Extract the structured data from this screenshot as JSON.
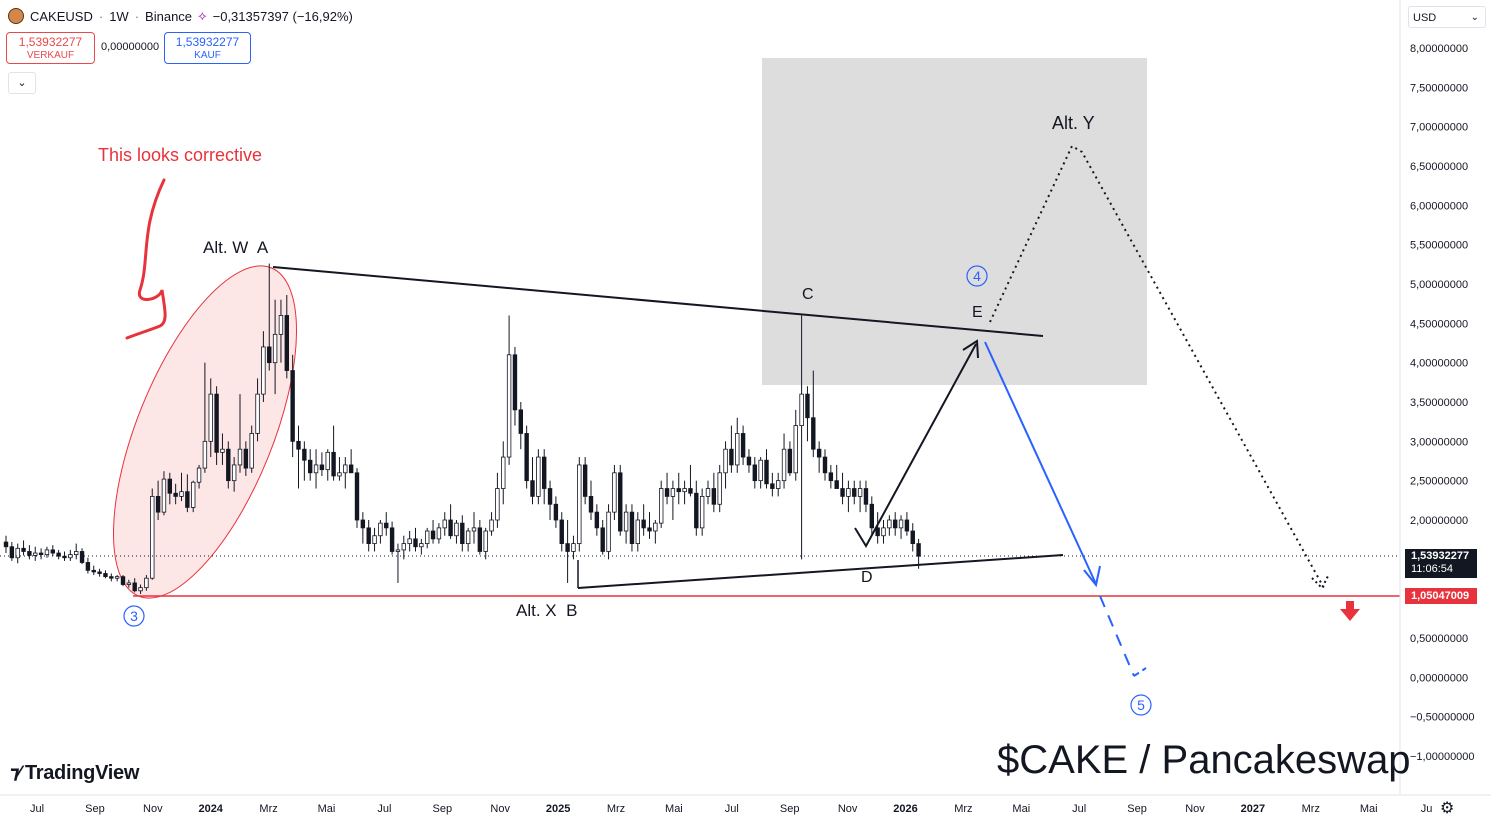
{
  "header": {
    "symbol": "CAKEUSD",
    "interval": "1W",
    "exchange": "Binance",
    "change": "−0,31357397 (−16,92%)",
    "sell_price": "1,53932277",
    "sell_label": "VERKAUF",
    "spread": "0,00000000",
    "buy_price": "1,53932277",
    "buy_label": "KAUF"
  },
  "currency": "USD",
  "price_scale": {
    "current_price": "1,53932277",
    "countdown": "11:06:54",
    "support_price": "1,05047009"
  },
  "branding": {
    "logo_text": "TradingView"
  },
  "title": "$CAKE / Pancakeswap",
  "colors": {
    "up": "#131722",
    "down": "#131722",
    "annotation_red": "#e8323c",
    "wave_blue": "#2962ff",
    "box_grey": "#d9d9d9"
  },
  "annotations": {
    "corrective_note": "This looks corrective",
    "alt_w_a": "Alt. W  A",
    "alt_x_b": "Alt. X  B",
    "c": "C",
    "d": "D",
    "e": "E",
    "alt_y": "Alt. Y",
    "wave3": "3",
    "wave4": "4",
    "wave5": "5"
  },
  "chart_data": {
    "type": "candlestick",
    "y_axis": {
      "min": -1.0,
      "max": 8.0,
      "tick_step": 0.5,
      "ticks": [
        "8,00000000",
        "7,50000000",
        "7,00000000",
        "6,50000000",
        "6,00000000",
        "5,50000000",
        "5,00000000",
        "4,50000000",
        "4,00000000",
        "3,50000000",
        "3,00000000",
        "2,50000000",
        "2,00000000",
        "1,50000000",
        "1,00000000",
        "0,50000000",
        "0,00000000",
        "−0,50000000",
        "−1,00000000"
      ]
    },
    "x_axis": {
      "labels": [
        "Jul",
        "Sep",
        "Nov",
        "2024",
        "Mrz",
        "Mai",
        "Jul",
        "Sep",
        "Nov",
        "2025",
        "Mrz",
        "Mai",
        "Jul",
        "Sep",
        "Nov",
        "2026",
        "Mrz",
        "Mai",
        "Jul",
        "Sep",
        "Nov",
        "2027",
        "Mrz",
        "Mai",
        "Ju"
      ]
    },
    "grid": false,
    "series": [
      {
        "interval": "1W",
        "candles": [
          [
            1.72,
            1.8,
            1.58,
            1.66
          ],
          [
            1.66,
            1.72,
            1.48,
            1.52
          ],
          [
            1.52,
            1.7,
            1.45,
            1.64
          ],
          [
            1.64,
            1.74,
            1.55,
            1.6
          ],
          [
            1.6,
            1.68,
            1.5,
            1.55
          ],
          [
            1.55,
            1.66,
            1.48,
            1.58
          ],
          [
            1.58,
            1.64,
            1.5,
            1.56
          ],
          [
            1.56,
            1.66,
            1.52,
            1.62
          ],
          [
            1.62,
            1.68,
            1.54,
            1.58
          ],
          [
            1.58,
            1.62,
            1.5,
            1.54
          ],
          [
            1.54,
            1.6,
            1.48,
            1.52
          ],
          [
            1.52,
            1.62,
            1.48,
            1.56
          ],
          [
            1.56,
            1.7,
            1.5,
            1.6
          ],
          [
            1.6,
            1.64,
            1.44,
            1.46
          ],
          [
            1.46,
            1.52,
            1.32,
            1.36
          ],
          [
            1.36,
            1.42,
            1.3,
            1.34
          ],
          [
            1.34,
            1.38,
            1.28,
            1.32
          ],
          [
            1.32,
            1.36,
            1.26,
            1.28
          ],
          [
            1.28,
            1.32,
            1.22,
            1.26
          ],
          [
            1.26,
            1.3,
            1.22,
            1.28
          ],
          [
            1.28,
            1.3,
            1.16,
            1.18
          ],
          [
            1.18,
            1.24,
            1.14,
            1.2
          ],
          [
            1.2,
            1.26,
            1.08,
            1.1
          ],
          [
            1.1,
            1.18,
            1.06,
            1.14
          ],
          [
            1.14,
            1.3,
            1.1,
            1.26
          ],
          [
            1.26,
            2.4,
            1.24,
            2.3
          ],
          [
            2.3,
            2.5,
            2.0,
            2.1
          ],
          [
            2.1,
            2.62,
            2.06,
            2.52
          ],
          [
            2.52,
            2.6,
            2.2,
            2.34
          ],
          [
            2.34,
            2.46,
            2.2,
            2.3
          ],
          [
            2.3,
            2.6,
            2.24,
            2.36
          ],
          [
            2.36,
            2.58,
            2.1,
            2.16
          ],
          [
            2.16,
            2.5,
            2.1,
            2.48
          ],
          [
            2.48,
            2.7,
            2.4,
            2.66
          ],
          [
            2.66,
            4.0,
            2.6,
            3.0
          ],
          [
            3.0,
            3.8,
            2.8,
            3.6
          ],
          [
            3.6,
            3.7,
            2.7,
            2.86
          ],
          [
            2.86,
            3.1,
            2.7,
            2.9
          ],
          [
            2.9,
            3.0,
            2.4,
            2.5
          ],
          [
            2.5,
            2.8,
            2.36,
            2.7
          ],
          [
            2.7,
            3.6,
            2.6,
            2.9
          ],
          [
            2.9,
            3.0,
            2.56,
            2.66
          ],
          [
            2.66,
            3.2,
            2.6,
            3.1
          ],
          [
            3.1,
            3.8,
            3.0,
            3.6
          ],
          [
            3.6,
            4.4,
            3.5,
            4.2
          ],
          [
            4.2,
            5.26,
            3.9,
            4.0
          ],
          [
            4.0,
            4.8,
            3.6,
            4.36
          ],
          [
            4.36,
            4.8,
            4.0,
            4.6
          ],
          [
            4.6,
            4.86,
            3.8,
            3.9
          ],
          [
            3.9,
            4.1,
            2.8,
            3.0
          ],
          [
            3.0,
            3.2,
            2.4,
            2.9
          ],
          [
            2.9,
            3.0,
            2.5,
            2.76
          ],
          [
            2.76,
            2.9,
            2.5,
            2.6
          ],
          [
            2.6,
            2.9,
            2.4,
            2.7
          ],
          [
            2.7,
            2.86,
            2.56,
            2.64
          ],
          [
            2.64,
            2.9,
            2.5,
            2.86
          ],
          [
            2.86,
            3.2,
            2.5,
            2.56
          ],
          [
            2.56,
            2.8,
            2.5,
            2.6
          ],
          [
            2.6,
            2.8,
            2.4,
            2.7
          ],
          [
            2.7,
            2.9,
            2.6,
            2.6
          ],
          [
            2.6,
            2.66,
            1.9,
            2.0
          ],
          [
            2.0,
            2.1,
            1.7,
            1.9
          ],
          [
            1.9,
            2.0,
            1.6,
            1.7
          ],
          [
            1.7,
            1.9,
            1.6,
            1.8
          ],
          [
            1.8,
            2.0,
            1.7,
            1.96
          ],
          [
            1.96,
            2.1,
            1.8,
            1.9
          ],
          [
            1.9,
            1.98,
            1.56,
            1.6
          ],
          [
            1.6,
            1.7,
            1.2,
            1.62
          ],
          [
            1.62,
            1.8,
            1.5,
            1.7
          ],
          [
            1.7,
            1.86,
            1.6,
            1.76
          ],
          [
            1.76,
            1.9,
            1.6,
            1.66
          ],
          [
            1.66,
            1.76,
            1.56,
            1.7
          ],
          [
            1.7,
            1.9,
            1.64,
            1.86
          ],
          [
            1.86,
            2.0,
            1.7,
            1.76
          ],
          [
            1.76,
            1.96,
            1.7,
            1.9
          ],
          [
            1.9,
            2.1,
            1.8,
            2.0
          ],
          [
            2.0,
            2.2,
            1.76,
            1.8
          ],
          [
            1.8,
            2.0,
            1.7,
            1.96
          ],
          [
            1.96,
            2.06,
            1.6,
            1.7
          ],
          [
            1.7,
            1.9,
            1.6,
            1.86
          ],
          [
            1.86,
            2.1,
            1.7,
            1.9
          ],
          [
            1.9,
            2.0,
            1.56,
            1.6
          ],
          [
            1.6,
            1.9,
            1.5,
            1.86
          ],
          [
            1.86,
            2.1,
            1.8,
            2.0
          ],
          [
            2.0,
            2.6,
            1.9,
            2.4
          ],
          [
            2.4,
            3.0,
            2.2,
            2.8
          ],
          [
            2.8,
            4.6,
            2.7,
            4.1
          ],
          [
            4.1,
            4.2,
            3.2,
            3.4
          ],
          [
            3.4,
            3.5,
            2.9,
            3.1
          ],
          [
            3.1,
            3.2,
            2.4,
            2.5
          ],
          [
            2.5,
            2.8,
            2.2,
            2.3
          ],
          [
            2.3,
            2.9,
            2.2,
            2.8
          ],
          [
            2.8,
            2.9,
            2.2,
            2.4
          ],
          [
            2.4,
            2.5,
            2.0,
            2.2
          ],
          [
            2.2,
            2.3,
            1.9,
            2.0
          ],
          [
            2.0,
            2.1,
            1.6,
            1.7
          ],
          [
            1.7,
            2.0,
            1.2,
            1.6
          ],
          [
            1.6,
            1.8,
            1.5,
            1.7
          ],
          [
            1.7,
            2.8,
            1.6,
            2.7
          ],
          [
            2.7,
            2.8,
            2.2,
            2.3
          ],
          [
            2.3,
            2.5,
            2.0,
            2.1
          ],
          [
            2.1,
            2.2,
            1.8,
            1.9
          ],
          [
            1.9,
            2.0,
            1.56,
            1.6
          ],
          [
            1.6,
            2.2,
            1.5,
            2.1
          ],
          [
            2.1,
            2.7,
            2.0,
            2.6
          ],
          [
            2.6,
            2.7,
            1.8,
            1.86
          ],
          [
            1.86,
            2.2,
            1.7,
            2.1
          ],
          [
            2.1,
            2.2,
            1.6,
            1.7
          ],
          [
            1.7,
            2.1,
            1.6,
            2.0
          ],
          [
            2.0,
            2.2,
            1.8,
            1.9
          ],
          [
            1.9,
            2.1,
            1.76,
            1.86
          ],
          [
            1.86,
            2.0,
            1.7,
            1.96
          ],
          [
            1.96,
            2.5,
            1.9,
            2.4
          ],
          [
            2.4,
            2.6,
            2.2,
            2.3
          ],
          [
            2.3,
            2.5,
            2.0,
            2.4
          ],
          [
            2.4,
            2.6,
            2.2,
            2.36
          ],
          [
            2.36,
            2.5,
            2.2,
            2.4
          ],
          [
            2.4,
            2.7,
            2.3,
            2.34
          ],
          [
            2.34,
            2.5,
            1.8,
            1.9
          ],
          [
            1.9,
            2.4,
            1.8,
            2.3
          ],
          [
            2.3,
            2.5,
            2.2,
            2.4
          ],
          [
            2.4,
            2.6,
            2.1,
            2.2
          ],
          [
            2.2,
            2.7,
            2.1,
            2.6
          ],
          [
            2.6,
            3.0,
            2.4,
            2.9
          ],
          [
            2.9,
            3.2,
            2.6,
            2.7
          ],
          [
            2.7,
            3.3,
            2.6,
            3.1
          ],
          [
            3.1,
            3.2,
            2.7,
            2.8
          ],
          [
            2.8,
            2.9,
            2.6,
            2.7
          ],
          [
            2.7,
            2.8,
            2.4,
            2.5
          ],
          [
            2.5,
            2.8,
            2.4,
            2.76
          ],
          [
            2.76,
            2.9,
            2.4,
            2.46
          ],
          [
            2.46,
            2.6,
            2.3,
            2.4
          ],
          [
            2.4,
            2.6,
            2.3,
            2.5
          ],
          [
            2.5,
            3.1,
            2.4,
            2.9
          ],
          [
            2.9,
            3.0,
            2.56,
            2.6
          ],
          [
            2.6,
            3.4,
            2.5,
            3.2
          ],
          [
            3.2,
            4.6,
            1.5,
            3.6
          ],
          [
            3.6,
            3.7,
            3.0,
            3.3
          ],
          [
            3.3,
            3.9,
            2.8,
            2.9
          ],
          [
            2.9,
            3.0,
            2.6,
            2.8
          ],
          [
            2.8,
            2.9,
            2.5,
            2.6
          ],
          [
            2.6,
            2.7,
            2.4,
            2.5
          ],
          [
            2.5,
            2.7,
            2.4,
            2.4
          ],
          [
            2.4,
            2.6,
            2.2,
            2.3
          ],
          [
            2.3,
            2.5,
            2.1,
            2.4
          ],
          [
            2.4,
            2.5,
            2.2,
            2.3
          ],
          [
            2.3,
            2.5,
            2.1,
            2.4
          ],
          [
            2.4,
            2.5,
            2.1,
            2.2
          ],
          [
            2.2,
            2.3,
            1.8,
            1.9
          ],
          [
            1.9,
            2.1,
            1.7,
            1.8
          ],
          [
            1.8,
            2.0,
            1.7,
            1.9
          ],
          [
            1.9,
            2.06,
            1.8,
            2.0
          ],
          [
            2.0,
            2.1,
            1.8,
            1.9
          ],
          [
            1.9,
            2.06,
            1.76,
            2.0
          ],
          [
            2.0,
            2.1,
            1.8,
            1.86
          ],
          [
            1.86,
            1.96,
            1.6,
            1.7
          ],
          [
            1.7,
            1.76,
            1.38,
            1.54
          ]
        ]
      }
    ],
    "levels": [
      {
        "name": "current_price",
        "value": 1.53932277,
        "style": "dotted"
      },
      {
        "name": "support",
        "value": 1.05047009,
        "color": "#e8323c"
      }
    ]
  }
}
